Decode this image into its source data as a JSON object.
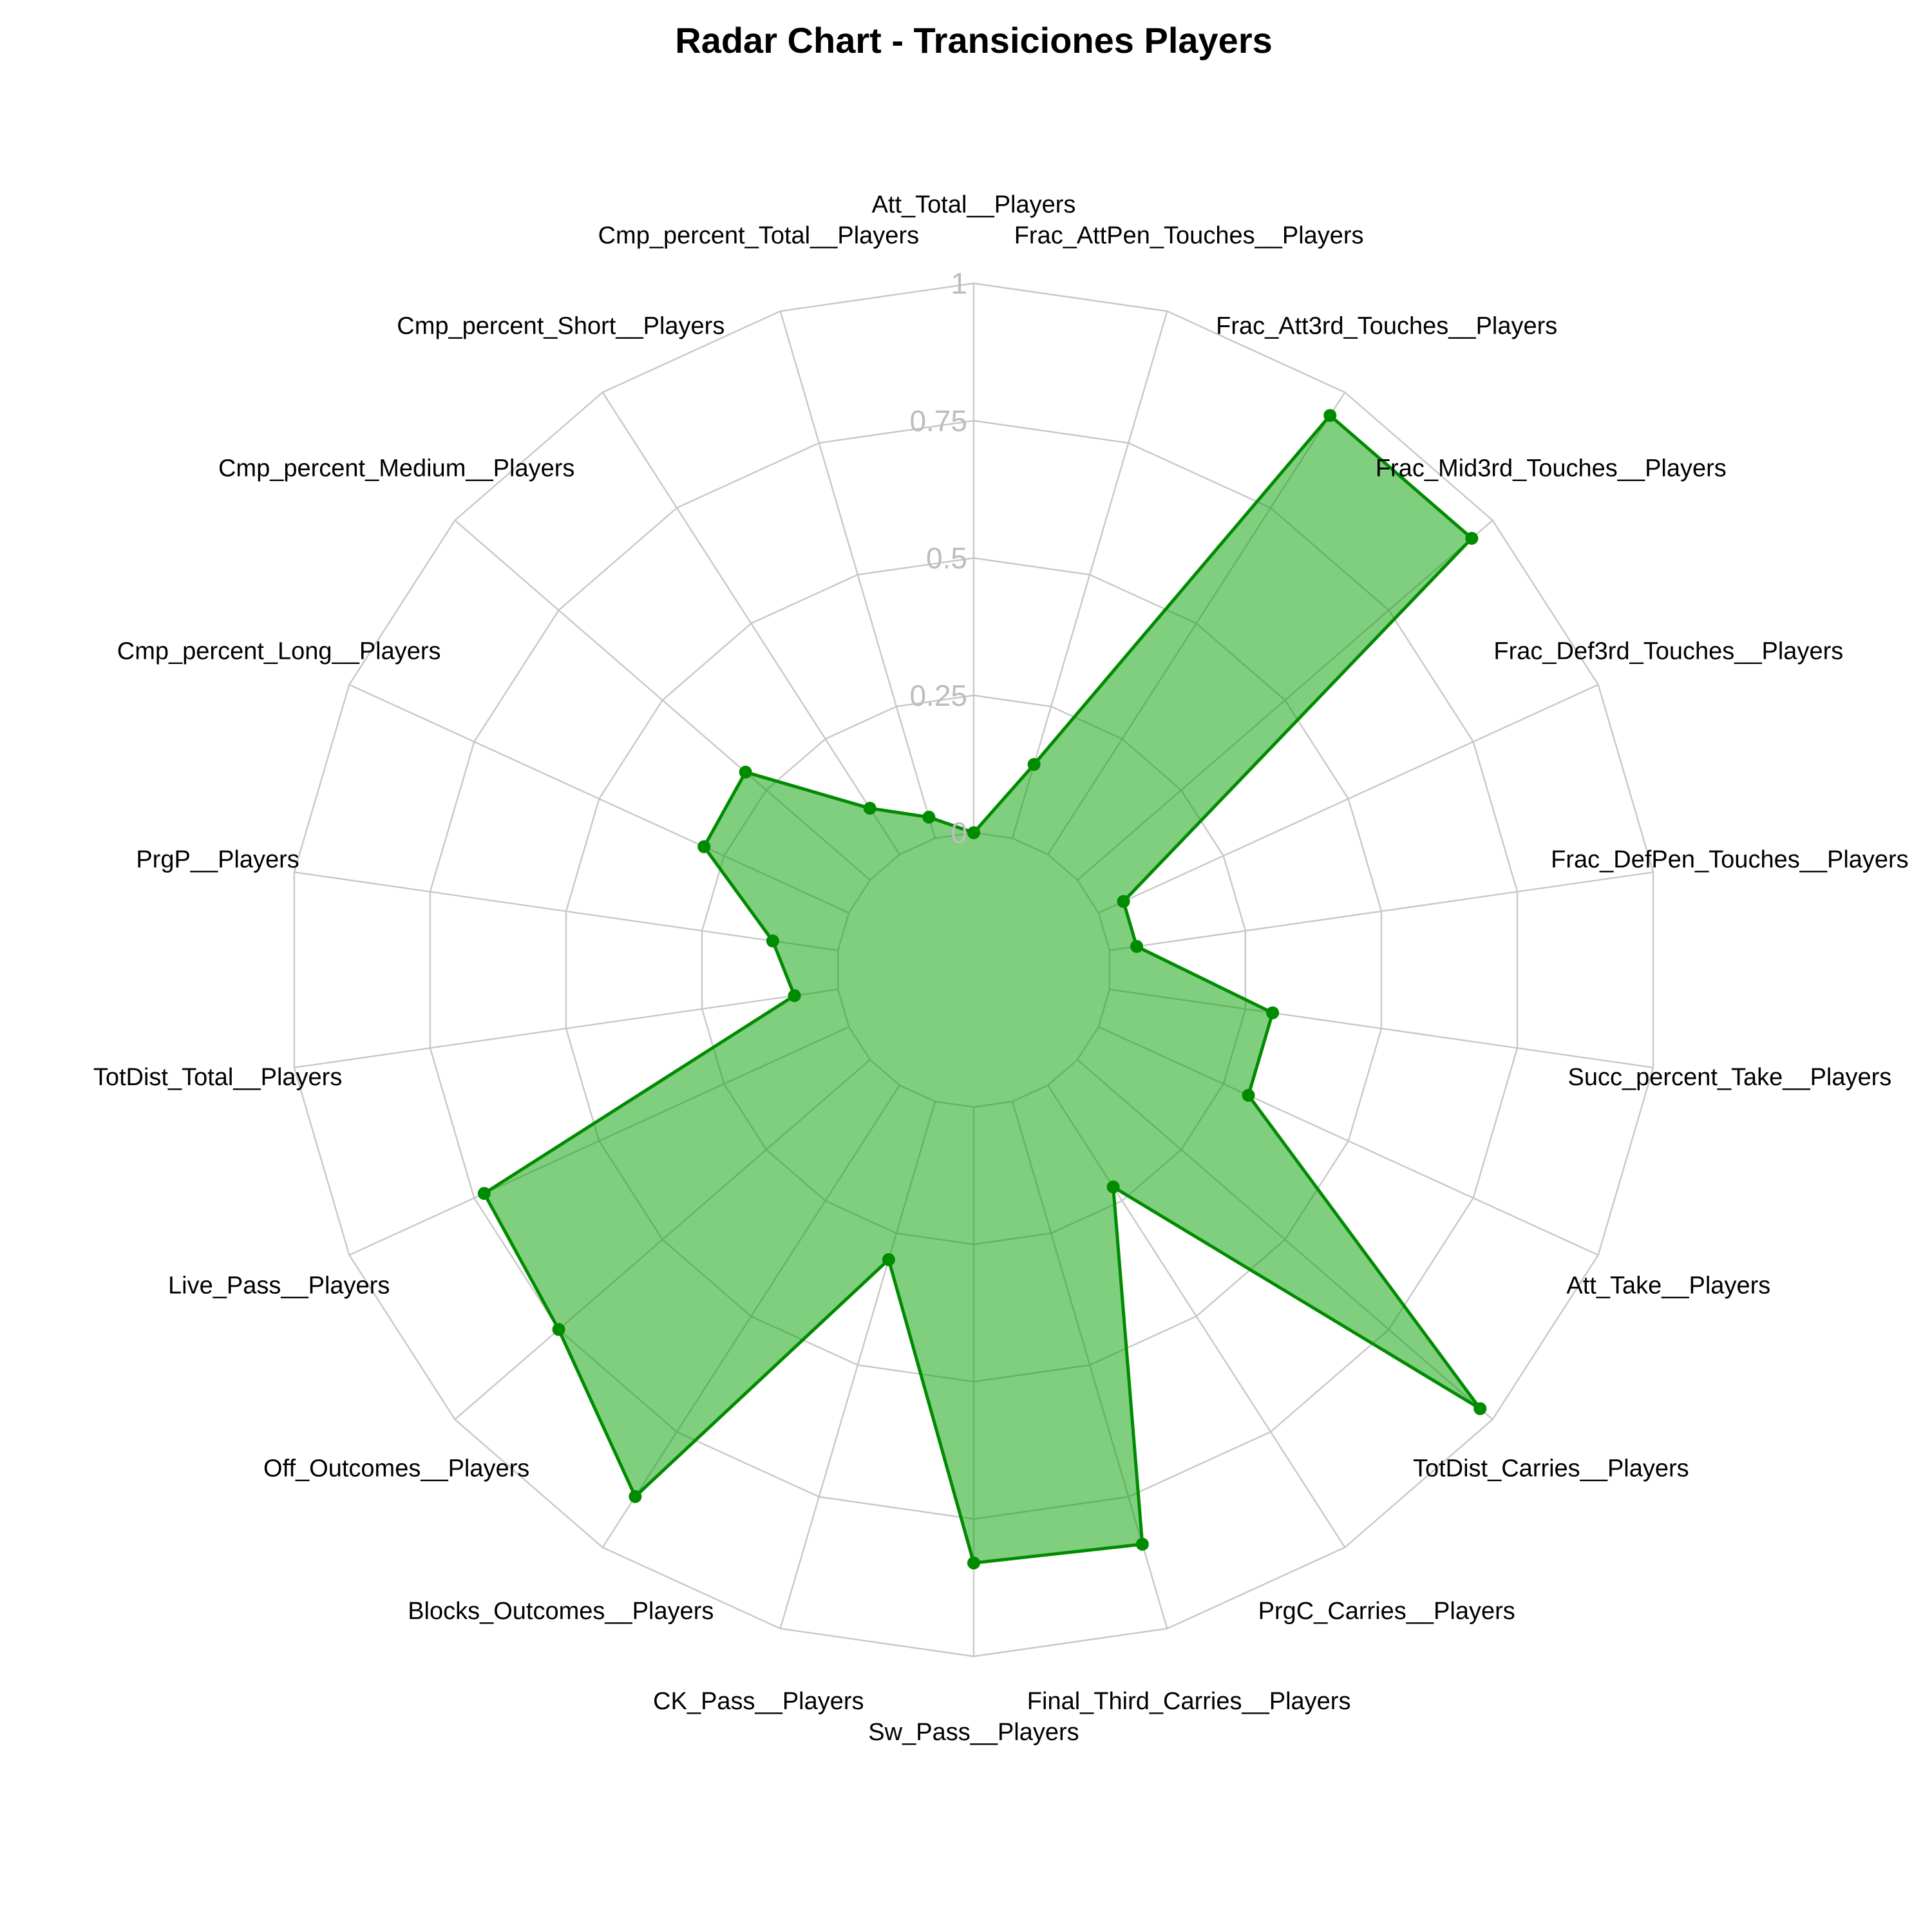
{
  "chart_data": {
    "type": "radar",
    "title": "Radar Chart - Transiciones Players",
    "categories": [
      "Att_Total__Players",
      "Frac_AttPen_Touches__Players",
      "Frac_Att3rd_Touches__Players",
      "Frac_Mid3rd_Touches__Players",
      "Frac_Def3rd_Touches__Players",
      "Frac_DefPen_Touches__Players",
      "Succ_percent_Take__Players",
      "Att_Take__Players",
      "TotDist_Carries__Players",
      "PrgC_Carries__Players",
      "Final_Third_Carries__Players",
      "Sw_Pass__Players",
      "CK_Pass__Players",
      "Blocks_Outcomes__Players",
      "Off_Outcomes__Players",
      "Live_Pass__Players",
      "TotDist_Total__Players",
      "PrgP__Players",
      "Cmp_percent_Long__Players",
      "Cmp_percent_Medium__Players",
      "Cmp_percent_Short__Players",
      "Cmp_percent_Total__Players"
    ],
    "series": [
      {
        "name": "",
        "values": [
          0.0,
          0.14,
          0.95,
          0.95,
          0.05,
          0.05,
          0.3,
          0.3,
          0.97,
          0.22,
          0.84,
          0.83,
          0.3,
          0.89,
          0.75,
          0.73,
          0.08,
          0.12,
          0.29,
          0.3,
          0.1,
          0.04
        ]
      }
    ],
    "rlim": [
      0,
      1
    ],
    "rticks": [
      0,
      0.25,
      0.5,
      0.75,
      1
    ],
    "rtick_labels": [
      "0",
      "0.25",
      "0.5",
      "0.75",
      "1"
    ],
    "grid": true,
    "colors": {
      "line": "#008b00",
      "point": "#008b00",
      "fill": "#00a000",
      "fill_opacity": 0.5,
      "grid": "#c8c8c8",
      "tick_text": "#bdbdbd"
    }
  }
}
